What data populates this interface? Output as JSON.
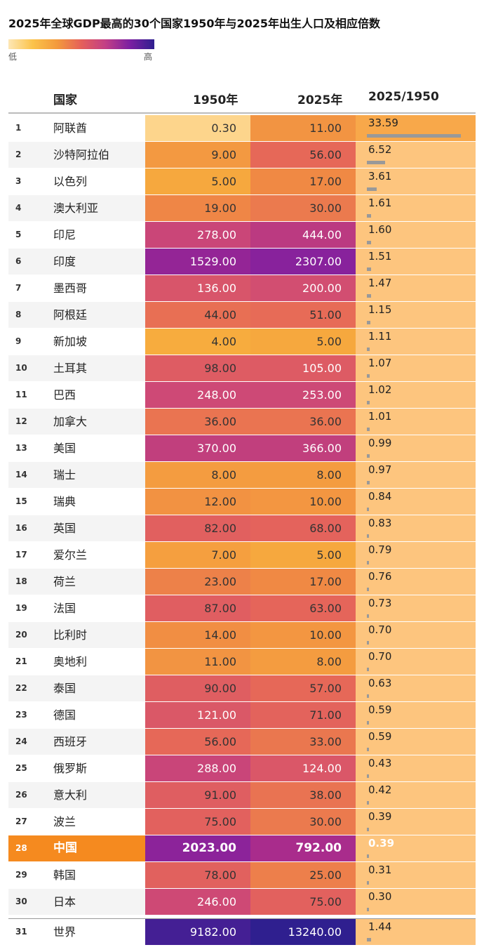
{
  "title": "2025年全球GDP最高的30个国家1950年与2025年出生人口及相应倍数",
  "legend": {
    "low": "低",
    "high": "高"
  },
  "headers": {
    "country": "国家",
    "y1950": "1950年",
    "y2025": "2025年",
    "ratio": "2025/1950"
  },
  "colors": {
    "highlight": "#f58a1f",
    "ratio_bg": "#fdc57e",
    "ratio_bar": "#999999"
  },
  "rows": [
    {
      "rank": "1",
      "name": "阿联酋",
      "v1950": "0.30",
      "v2025": "11.00",
      "ratio": "33.59"
    },
    {
      "rank": "2",
      "name": "沙特阿拉伯",
      "v1950": "9.00",
      "v2025": "56.00",
      "ratio": "6.52"
    },
    {
      "rank": "3",
      "name": "以色列",
      "v1950": "5.00",
      "v2025": "17.00",
      "ratio": "3.61"
    },
    {
      "rank": "4",
      "name": "澳大利亚",
      "v1950": "19.00",
      "v2025": "30.00",
      "ratio": "1.61"
    },
    {
      "rank": "5",
      "name": "印尼",
      "v1950": "278.00",
      "v2025": "444.00",
      "ratio": "1.60"
    },
    {
      "rank": "6",
      "name": "印度",
      "v1950": "1529.00",
      "v2025": "2307.00",
      "ratio": "1.51"
    },
    {
      "rank": "7",
      "name": "墨西哥",
      "v1950": "136.00",
      "v2025": "200.00",
      "ratio": "1.47"
    },
    {
      "rank": "8",
      "name": "阿根廷",
      "v1950": "44.00",
      "v2025": "51.00",
      "ratio": "1.15"
    },
    {
      "rank": "9",
      "name": "新加坡",
      "v1950": "4.00",
      "v2025": "5.00",
      "ratio": "1.11"
    },
    {
      "rank": "10",
      "name": "土耳其",
      "v1950": "98.00",
      "v2025": "105.00",
      "ratio": "1.07"
    },
    {
      "rank": "11",
      "name": "巴西",
      "v1950": "248.00",
      "v2025": "253.00",
      "ratio": "1.02"
    },
    {
      "rank": "12",
      "name": "加拿大",
      "v1950": "36.00",
      "v2025": "36.00",
      "ratio": "1.01"
    },
    {
      "rank": "13",
      "name": "美国",
      "v1950": "370.00",
      "v2025": "366.00",
      "ratio": "0.99"
    },
    {
      "rank": "14",
      "name": "瑞士",
      "v1950": "8.00",
      "v2025": "8.00",
      "ratio": "0.97"
    },
    {
      "rank": "15",
      "name": "瑞典",
      "v1950": "12.00",
      "v2025": "10.00",
      "ratio": "0.84"
    },
    {
      "rank": "16",
      "name": "英国",
      "v1950": "82.00",
      "v2025": "68.00",
      "ratio": "0.83"
    },
    {
      "rank": "17",
      "name": "爱尔兰",
      "v1950": "7.00",
      "v2025": "5.00",
      "ratio": "0.79"
    },
    {
      "rank": "18",
      "name": "荷兰",
      "v1950": "23.00",
      "v2025": "17.00",
      "ratio": "0.76"
    },
    {
      "rank": "19",
      "name": "法国",
      "v1950": "87.00",
      "v2025": "63.00",
      "ratio": "0.73"
    },
    {
      "rank": "20",
      "name": "比利时",
      "v1950": "14.00",
      "v2025": "10.00",
      "ratio": "0.70"
    },
    {
      "rank": "21",
      "name": "奥地利",
      "v1950": "11.00",
      "v2025": "8.00",
      "ratio": "0.70"
    },
    {
      "rank": "22",
      "name": "泰国",
      "v1950": "90.00",
      "v2025": "57.00",
      "ratio": "0.63"
    },
    {
      "rank": "23",
      "name": "德国",
      "v1950": "121.00",
      "v2025": "71.00",
      "ratio": "0.59"
    },
    {
      "rank": "24",
      "name": "西班牙",
      "v1950": "56.00",
      "v2025": "33.00",
      "ratio": "0.59"
    },
    {
      "rank": "25",
      "name": "俄罗斯",
      "v1950": "288.00",
      "v2025": "124.00",
      "ratio": "0.43"
    },
    {
      "rank": "26",
      "name": "意大利",
      "v1950": "91.00",
      "v2025": "38.00",
      "ratio": "0.42"
    },
    {
      "rank": "27",
      "name": "波兰",
      "v1950": "75.00",
      "v2025": "30.00",
      "ratio": "0.39"
    },
    {
      "rank": "28",
      "name": "中国",
      "v1950": "2023.00",
      "v2025": "792.00",
      "ratio": "0.39",
      "highlight": true
    },
    {
      "rank": "29",
      "name": "韩国",
      "v1950": "78.00",
      "v2025": "25.00",
      "ratio": "0.31"
    },
    {
      "rank": "30",
      "name": "日本",
      "v1950": "246.00",
      "v2025": "75.00",
      "ratio": "0.30"
    },
    {
      "rank": "31",
      "name": "世界",
      "v1950": "9182.00",
      "v2025": "13240.00",
      "ratio": "1.44",
      "world": true
    }
  ],
  "chart_data": {
    "type": "table",
    "title": "2025年全球GDP最高的30个国家1950年与2025年出生人口及相应倍数",
    "columns": [
      "国家",
      "1950年",
      "2025年",
      "2025/1950"
    ],
    "categories": [
      "阿联酋",
      "沙特阿拉伯",
      "以色列",
      "澳大利亚",
      "印尼",
      "印度",
      "墨西哥",
      "阿根廷",
      "新加坡",
      "土耳其",
      "巴西",
      "加拿大",
      "美国",
      "瑞士",
      "瑞典",
      "英国",
      "爱尔兰",
      "荷兰",
      "法国",
      "比利时",
      "奥地利",
      "泰国",
      "德国",
      "西班牙",
      "俄罗斯",
      "意大利",
      "波兰",
      "中国",
      "韩国",
      "日本",
      "世界"
    ],
    "series": [
      {
        "name": "1950年",
        "values": [
          0.3,
          9,
          5,
          19,
          278,
          1529,
          136,
          44,
          4,
          98,
          248,
          36,
          370,
          8,
          12,
          82,
          7,
          23,
          87,
          14,
          11,
          90,
          121,
          56,
          288,
          91,
          75,
          2023,
          78,
          246,
          9182
        ]
      },
      {
        "name": "2025年",
        "values": [
          11,
          56,
          17,
          30,
          444,
          2307,
          200,
          51,
          5,
          105,
          253,
          36,
          366,
          8,
          10,
          68,
          5,
          17,
          63,
          10,
          8,
          57,
          71,
          33,
          124,
          38,
          30,
          792,
          25,
          75,
          13240
        ]
      },
      {
        "name": "2025/1950",
        "values": [
          33.59,
          6.52,
          3.61,
          1.61,
          1.6,
          1.51,
          1.47,
          1.15,
          1.11,
          1.07,
          1.02,
          1.01,
          0.99,
          0.97,
          0.84,
          0.83,
          0.79,
          0.76,
          0.73,
          0.7,
          0.7,
          0.63,
          0.59,
          0.59,
          0.43,
          0.42,
          0.39,
          0.39,
          0.31,
          0.3,
          1.44
        ]
      }
    ]
  }
}
